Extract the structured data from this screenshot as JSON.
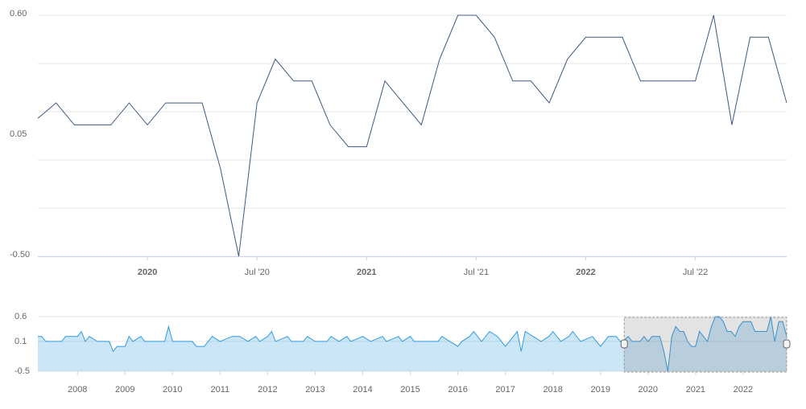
{
  "chart_data": [
    {
      "type": "line",
      "x": [
        "2019-07",
        "2019-08",
        "2019-09",
        "2019-10",
        "2019-11",
        "2019-12",
        "2020-01",
        "2020-02",
        "2020-04",
        "2020-05",
        "2020-06",
        "2020-07",
        "2020-08",
        "2020-09",
        "2020-10",
        "2020-11",
        "2020-12",
        "2021-01",
        "2021-02",
        "2021-04",
        "2021-05",
        "2021-06",
        "2021-07",
        "2021-08",
        "2021-09",
        "2021-10",
        "2021-11",
        "2021-12",
        "2022-01",
        "2022-03",
        "2022-04",
        "2022-07",
        "2022-08",
        "2022-09",
        "2022-10",
        "2022-11",
        "2022-12"
      ],
      "series": [
        {
          "color": "#3d5a80",
          "values": [
            0.13,
            0.2,
            0.1,
            0.1,
            0.1,
            0.2,
            0.1,
            0.2,
            0.2,
            -0.1,
            -0.5,
            0.2,
            0.4,
            0.3,
            0.3,
            0.1,
            0.0,
            0.0,
            0.3,
            0.1,
            0.4,
            0.6,
            0.6,
            0.5,
            0.3,
            0.3,
            0.2,
            0.4,
            0.5,
            0.5,
            0.3,
            0.3,
            0.6,
            0.1,
            0.5,
            0.5,
            0.2
          ]
        }
      ],
      "xlim": [
        "2019-07",
        "2022-12"
      ],
      "xticks": [
        {
          "value": "2020-01",
          "label": "2020"
        },
        {
          "value": "2020-07",
          "label": "Jul '20"
        },
        {
          "value": "2021-01",
          "label": "2021"
        },
        {
          "value": "2021-07",
          "label": "Jul '21"
        },
        {
          "value": "2022-01",
          "label": "2022"
        },
        {
          "value": "2022-07",
          "label": "Jul '22"
        }
      ],
      "ylim": [
        -0.5,
        0.6
      ],
      "yticks": [
        {
          "value": 0.6,
          "label": "0.60"
        },
        {
          "value": 0.05,
          "label": "0.05"
        },
        {
          "value": -0.5,
          "label": "-0.50"
        }
      ],
      "ygrid": [
        0.6,
        0.38,
        0.16,
        -0.06,
        -0.28,
        -0.5
      ],
      "grid": true
    },
    {
      "type": "area",
      "x": [
        "2007-03",
        "2007-04",
        "2007-05",
        "2007-09",
        "2007-10",
        "2008-01",
        "2008-02",
        "2008-03",
        "2008-04",
        "2008-06",
        "2008-09",
        "2008-10",
        "2008-11",
        "2009-01",
        "2009-02",
        "2009-03",
        "2009-05",
        "2009-06",
        "2009-11",
        "2009-12",
        "2010-01",
        "2010-06",
        "2010-07",
        "2010-09",
        "2010-10",
        "2010-11",
        "2011-01",
        "2011-04",
        "2011-06",
        "2011-08",
        "2011-10",
        "2011-11",
        "2012-01",
        "2012-02",
        "2012-03",
        "2012-06",
        "2012-07",
        "2012-10",
        "2012-11",
        "2013-01",
        "2013-04",
        "2013-05",
        "2013-07",
        "2013-09",
        "2013-10",
        "2014-01",
        "2014-03",
        "2014-06",
        "2014-07",
        "2014-10",
        "2014-11",
        "2015-01",
        "2015-02",
        "2015-08",
        "2015-09",
        "2015-11",
        "2016-01",
        "2016-02",
        "2016-04",
        "2016-05",
        "2016-07",
        "2016-09",
        "2016-11",
        "2017-01",
        "2017-02",
        "2017-04",
        "2017-05",
        "2017-06",
        "2017-08",
        "2017-10",
        "2017-12",
        "2018-01",
        "2018-03",
        "2018-05",
        "2018-06",
        "2018-08",
        "2018-11",
        "2019-01",
        "2019-02",
        "2019-03",
        "2019-05",
        "2019-06"
      ],
      "series": [
        {
          "color": "#2f9be0",
          "values": [
            0.2,
            0.2,
            0.1,
            0.1,
            0.2,
            0.2,
            0.3,
            0.1,
            0.2,
            0.1,
            0.1,
            -0.1,
            0.0,
            0.0,
            0.2,
            0.1,
            0.2,
            0.1,
            0.1,
            0.4,
            0.1,
            0.1,
            0.0,
            0.0,
            0.1,
            0.2,
            0.1,
            0.2,
            0.2,
            0.1,
            0.2,
            0.1,
            0.2,
            0.3,
            0.1,
            0.2,
            0.1,
            0.1,
            0.2,
            0.1,
            0.1,
            0.2,
            0.1,
            0.2,
            0.1,
            0.2,
            0.1,
            0.2,
            0.1,
            0.2,
            0.1,
            0.2,
            0.1,
            0.1,
            0.2,
            0.1,
            0.0,
            0.1,
            0.2,
            0.3,
            0.1,
            0.3,
            0.2,
            0.0,
            0.1,
            0.3,
            -0.1,
            0.3,
            0.2,
            0.1,
            0.2,
            0.3,
            0.1,
            0.2,
            0.3,
            0.1,
            0.2,
            0.0,
            0.1,
            0.2,
            0.2,
            0.1
          ]
        }
      ],
      "xlim": [
        "2007-03",
        "2022-12"
      ],
      "xticks": [
        {
          "value": "2008-01",
          "label": "2008"
        },
        {
          "value": "2009-01",
          "label": "2009"
        },
        {
          "value": "2010-01",
          "label": "2010"
        },
        {
          "value": "2011-01",
          "label": "2011"
        },
        {
          "value": "2012-01",
          "label": "2012"
        },
        {
          "value": "2013-01",
          "label": "2013"
        },
        {
          "value": "2014-01",
          "label": "2014"
        },
        {
          "value": "2015-01",
          "label": "2015"
        },
        {
          "value": "2016-01",
          "label": "2016"
        },
        {
          "value": "2017-01",
          "label": "2017"
        },
        {
          "value": "2018-01",
          "label": "2018"
        },
        {
          "value": "2019-01",
          "label": "2019"
        },
        {
          "value": "2020-01",
          "label": "2020"
        },
        {
          "value": "2021-01",
          "label": "2021"
        },
        {
          "value": "2022-01",
          "label": "2022"
        }
      ],
      "ylim": [
        -0.5,
        0.6
      ],
      "yticks": [
        0.6,
        0.1,
        -0.5
      ],
      "grid": true
    }
  ]
}
